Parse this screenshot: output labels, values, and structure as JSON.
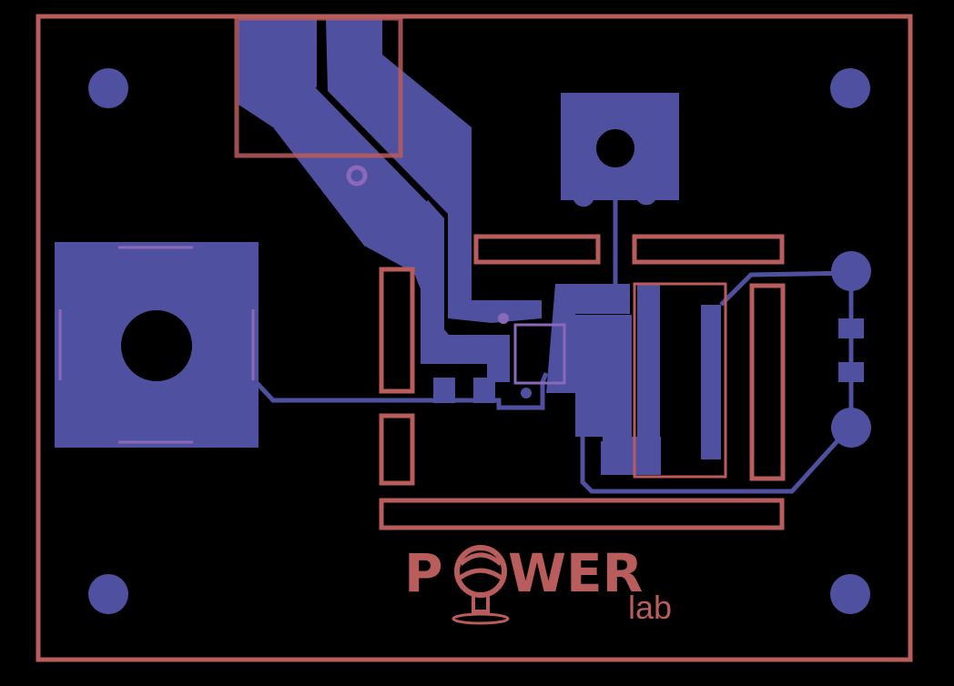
{
  "colors": {
    "background": "#000000",
    "copper": "#5050a0",
    "silkscreen": "#b85c5c",
    "highlight": "#8a6ab8"
  },
  "logo": {
    "part1": "P",
    "part2": "WER",
    "sub": "lab"
  }
}
